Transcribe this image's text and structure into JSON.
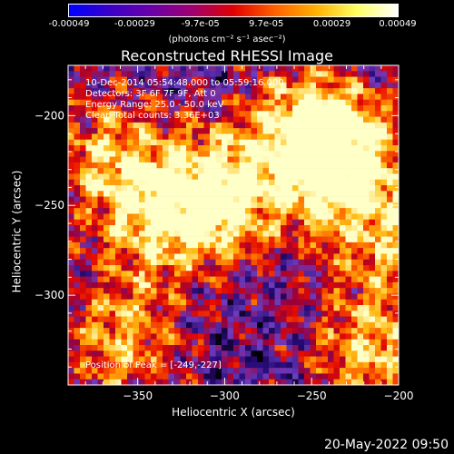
{
  "colorbar": {
    "ticks": [
      "-0.00049",
      "-0.00029",
      "-9.7e-05",
      "9.7e-05",
      "0.00029",
      "0.00049"
    ],
    "unit": "(photons cm⁻² s⁻¹ asec⁻²)",
    "stops": [
      "#0000ff",
      "#3a00c8",
      "#6a00a8",
      "#a00070",
      "#e00000",
      "#ff6000",
      "#ffb000",
      "#ffff60",
      "#ffffff"
    ]
  },
  "info": {
    "line1": "10-Dec-2014 05:54:48.000 to 05:59:16.000",
    "line2": "Detectors: 3F 6F 7F 9F, Att 0",
    "line3": "Energy Range: 25.0 - 50.0 keV",
    "line4": "Clean     Total counts: 3.36E+03",
    "peak": "Position of Peak = [-249,-227]"
  },
  "footer": {
    "timestamp": "20-May-2022 09:50"
  },
  "chart_data": {
    "type": "heatmap",
    "title": "Reconstructed RHESSI Image",
    "xlabel": "Heliocentric X (arcsec)",
    "ylabel": "Heliocentric Y (arcsec)",
    "xlim": [
      -390,
      -200
    ],
    "ylim": [
      -350,
      -172
    ],
    "xticks": [
      -350,
      -300,
      -250,
      -200
    ],
    "yticks": [
      -200,
      -250,
      -300
    ],
    "value_range": [
      -0.00049,
      0.00049
    ],
    "peak_position": [
      -249,
      -227
    ],
    "hot_regions": [
      {
        "x": -305,
        "y": -245,
        "level": 0.95
      },
      {
        "x": -250,
        "y": -210,
        "level": 0.9
      },
      {
        "x": -235,
        "y": -225,
        "level": 0.85
      },
      {
        "x": -340,
        "y": -255,
        "level": 0.7
      },
      {
        "x": -215,
        "y": -330,
        "level": 0.8
      },
      {
        "x": -360,
        "y": -325,
        "level": 0.7
      },
      {
        "x": -370,
        "y": -220,
        "level": 0.6
      },
      {
        "x": -205,
        "y": -265,
        "level": 0.6
      }
    ]
  }
}
